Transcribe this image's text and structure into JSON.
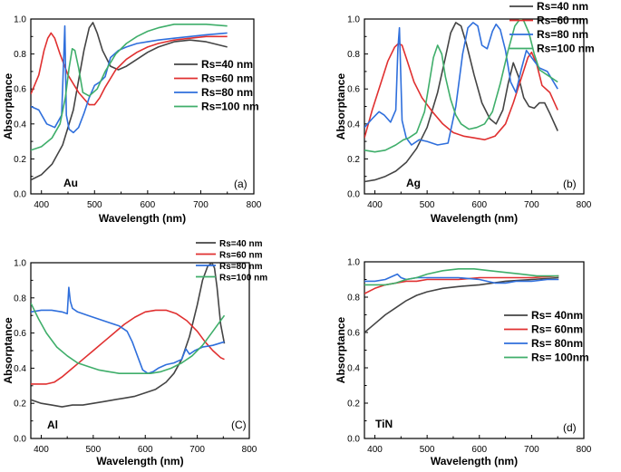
{
  "chart_data": [
    {
      "type": "line",
      "panel_label": "Au",
      "panel_tag": "(a)",
      "xlabel": "Wavelength (nm)",
      "ylabel": "Absorptance",
      "xlim": [
        380,
        800
      ],
      "ylim": [
        0,
        1.0
      ],
      "xticks": [
        400,
        500,
        600,
        700,
        800
      ],
      "yticks": [
        0.0,
        0.2,
        0.4,
        0.6,
        0.8,
        1.0
      ],
      "legend_position": "center-right",
      "legend_style": "bold",
      "series": [
        {
          "name": "Rs=40 nm",
          "color": "#444444",
          "x": [
            380,
            400,
            420,
            440,
            460,
            470,
            480,
            490,
            497,
            505,
            515,
            530,
            545,
            560,
            580,
            600,
            620,
            650,
            680,
            710,
            750
          ],
          "y": [
            0.08,
            0.11,
            0.17,
            0.28,
            0.48,
            0.65,
            0.82,
            0.95,
            0.98,
            0.92,
            0.82,
            0.73,
            0.71,
            0.73,
            0.77,
            0.81,
            0.84,
            0.87,
            0.88,
            0.87,
            0.84
          ]
        },
        {
          "name": "Rs=60 nm",
          "color": "#e03030",
          "x": [
            380,
            395,
            405,
            412,
            418,
            425,
            435,
            450,
            470,
            490,
            500,
            510,
            520,
            540,
            560,
            580,
            600,
            620,
            650,
            680,
            710,
            750
          ],
          "y": [
            0.57,
            0.68,
            0.82,
            0.89,
            0.92,
            0.89,
            0.8,
            0.68,
            0.58,
            0.51,
            0.51,
            0.55,
            0.61,
            0.71,
            0.77,
            0.81,
            0.84,
            0.86,
            0.88,
            0.89,
            0.9,
            0.9
          ]
        },
        {
          "name": "Rs=80 nm",
          "color": "#2f6fdc",
          "x": [
            380,
            395,
            410,
            425,
            438,
            442,
            444,
            447,
            452,
            460,
            470,
            480,
            490,
            500,
            510,
            520,
            530,
            545,
            560,
            580,
            600,
            620,
            650,
            680,
            710,
            750
          ],
          "y": [
            0.5,
            0.48,
            0.4,
            0.38,
            0.45,
            0.78,
            0.96,
            0.45,
            0.37,
            0.35,
            0.38,
            0.46,
            0.55,
            0.62,
            0.64,
            0.67,
            0.78,
            0.82,
            0.84,
            0.86,
            0.87,
            0.88,
            0.89,
            0.9,
            0.91,
            0.92
          ]
        },
        {
          "name": "Rs=100 nm",
          "color": "#3fae6a",
          "x": [
            380,
            400,
            420,
            435,
            445,
            452,
            458,
            463,
            470,
            478,
            490,
            505,
            520,
            540,
            560,
            580,
            600,
            620,
            650,
            680,
            710,
            750
          ],
          "y": [
            0.25,
            0.27,
            0.32,
            0.4,
            0.55,
            0.72,
            0.83,
            0.82,
            0.72,
            0.58,
            0.56,
            0.6,
            0.7,
            0.8,
            0.86,
            0.9,
            0.93,
            0.95,
            0.97,
            0.97,
            0.97,
            0.96
          ]
        }
      ]
    },
    {
      "type": "line",
      "panel_label": "Ag",
      "panel_tag": "(b)",
      "xlabel": "Wavelength (nm)",
      "ylabel": "Absorptance",
      "xlim": [
        380,
        800
      ],
      "ylim": [
        0,
        1.0
      ],
      "xticks": [
        400,
        500,
        600,
        700,
        800
      ],
      "yticks": [
        0.0,
        0.2,
        0.4,
        0.6,
        0.8,
        1.0
      ],
      "legend_position": "top-right",
      "legend_style": "bold",
      "series": [
        {
          "name": "Rs=40 nm",
          "color": "#444444",
          "x": [
            380,
            400,
            420,
            440,
            460,
            480,
            500,
            520,
            535,
            545,
            555,
            565,
            575,
            590,
            605,
            620,
            632,
            645,
            655,
            665,
            675,
            685,
            695,
            705,
            715,
            725,
            735,
            750
          ],
          "y": [
            0.07,
            0.08,
            0.1,
            0.13,
            0.18,
            0.26,
            0.38,
            0.58,
            0.78,
            0.92,
            0.98,
            0.96,
            0.86,
            0.68,
            0.52,
            0.43,
            0.4,
            0.48,
            0.63,
            0.75,
            0.67,
            0.55,
            0.5,
            0.49,
            0.52,
            0.52,
            0.46,
            0.36
          ]
        },
        {
          "name": "Rs=60 nm",
          "color": "#e03030",
          "x": [
            380,
            395,
            410,
            425,
            438,
            445,
            452,
            462,
            475,
            490,
            510,
            530,
            550,
            570,
            590,
            610,
            630,
            650,
            665,
            680,
            693,
            700,
            710,
            720,
            735,
            750
          ],
          "y": [
            0.32,
            0.48,
            0.62,
            0.76,
            0.84,
            0.86,
            0.85,
            0.76,
            0.64,
            0.55,
            0.47,
            0.4,
            0.35,
            0.33,
            0.32,
            0.31,
            0.33,
            0.4,
            0.52,
            0.66,
            0.78,
            0.81,
            0.74,
            0.62,
            0.58,
            0.48
          ]
        },
        {
          "name": "Rs=80 nm",
          "color": "#2f6fdc",
          "x": [
            380,
            395,
            408,
            418,
            430,
            440,
            444,
            447,
            452,
            460,
            470,
            485,
            500,
            520,
            540,
            555,
            568,
            578,
            588,
            597,
            605,
            615,
            625,
            632,
            640,
            650,
            660,
            670,
            680,
            690,
            700,
            715,
            730,
            750
          ],
          "y": [
            0.38,
            0.43,
            0.47,
            0.45,
            0.41,
            0.48,
            0.83,
            0.95,
            0.42,
            0.32,
            0.28,
            0.31,
            0.3,
            0.28,
            0.29,
            0.5,
            0.8,
            0.95,
            0.98,
            0.96,
            0.85,
            0.83,
            0.93,
            0.97,
            0.94,
            0.82,
            0.64,
            0.58,
            0.71,
            0.82,
            0.78,
            0.72,
            0.7,
            0.6
          ]
        },
        {
          "name": "Rs=100 nm",
          "color": "#3fae6a",
          "x": [
            380,
            400,
            420,
            440,
            455,
            465,
            480,
            495,
            505,
            512,
            520,
            528,
            535,
            545,
            555,
            565,
            580,
            595,
            610,
            625,
            640,
            655,
            668,
            678,
            685,
            695,
            705,
            715,
            730,
            750
          ],
          "y": [
            0.25,
            0.24,
            0.25,
            0.28,
            0.31,
            0.32,
            0.35,
            0.47,
            0.65,
            0.78,
            0.85,
            0.8,
            0.67,
            0.54,
            0.45,
            0.4,
            0.37,
            0.38,
            0.4,
            0.47,
            0.63,
            0.82,
            0.96,
            1.0,
            0.99,
            0.92,
            0.8,
            0.71,
            0.68,
            0.64
          ]
        }
      ]
    },
    {
      "type": "line",
      "panel_label": "Al",
      "panel_tag": "(C)",
      "xlabel": "Wavelength (nm)",
      "ylabel": "Absorptance",
      "xlim": [
        380,
        800
      ],
      "ylim": [
        0,
        1.0
      ],
      "xticks": [
        400,
        500,
        600,
        700,
        800
      ],
      "yticks": [
        0.0,
        0.2,
        0.4,
        0.6,
        0.8,
        1.0
      ],
      "legend_position": "top-right",
      "legend_style": "small",
      "series": [
        {
          "name": "Rs=40 nm",
          "color": "#444444",
          "x": [
            380,
            400,
            420,
            440,
            460,
            480,
            500,
            520,
            540,
            560,
            580,
            600,
            620,
            640,
            655,
            670,
            685,
            700,
            710,
            720,
            728,
            733,
            738,
            745,
            752
          ],
          "y": [
            0.22,
            0.2,
            0.19,
            0.18,
            0.19,
            0.19,
            0.2,
            0.21,
            0.22,
            0.23,
            0.24,
            0.26,
            0.28,
            0.32,
            0.37,
            0.45,
            0.58,
            0.76,
            0.9,
            0.98,
            1.0,
            0.97,
            0.86,
            0.65,
            0.54
          ]
        },
        {
          "name": "Rs=60 nm",
          "color": "#e03030",
          "x": [
            380,
            395,
            410,
            425,
            440,
            460,
            480,
            500,
            520,
            540,
            560,
            580,
            600,
            620,
            640,
            660,
            680,
            700,
            715,
            730,
            745,
            752
          ],
          "y": [
            0.31,
            0.31,
            0.31,
            0.32,
            0.35,
            0.4,
            0.45,
            0.5,
            0.55,
            0.6,
            0.65,
            0.69,
            0.72,
            0.73,
            0.73,
            0.71,
            0.67,
            0.61,
            0.55,
            0.5,
            0.46,
            0.45
          ]
        },
        {
          "name": "Rs=80 nm",
          "color": "#2f6fdc",
          "x": [
            380,
            400,
            420,
            440,
            450,
            453,
            456,
            460,
            470,
            490,
            510,
            530,
            550,
            565,
            575,
            585,
            595,
            605,
            615,
            625,
            640,
            655,
            670,
            678,
            685,
            695,
            710,
            730,
            752
          ],
          "y": [
            0.72,
            0.73,
            0.73,
            0.72,
            0.71,
            0.86,
            0.78,
            0.74,
            0.72,
            0.7,
            0.68,
            0.66,
            0.64,
            0.61,
            0.55,
            0.47,
            0.39,
            0.37,
            0.38,
            0.4,
            0.42,
            0.43,
            0.45,
            0.51,
            0.48,
            0.5,
            0.52,
            0.53,
            0.55
          ]
        },
        {
          "name": "Rs=100 nm",
          "color": "#3fae6a",
          "x": [
            380,
            395,
            410,
            430,
            450,
            470,
            490,
            510,
            530,
            550,
            570,
            590,
            610,
            630,
            650,
            670,
            690,
            710,
            730,
            752
          ],
          "y": [
            0.77,
            0.68,
            0.6,
            0.52,
            0.47,
            0.43,
            0.41,
            0.39,
            0.38,
            0.37,
            0.37,
            0.37,
            0.37,
            0.38,
            0.4,
            0.43,
            0.47,
            0.53,
            0.61,
            0.7
          ]
        }
      ]
    },
    {
      "type": "line",
      "panel_label": "TiN",
      "panel_tag": "(d)",
      "xlabel": "Wavelength (nm)",
      "ylabel": "Absorptance",
      "xlim": [
        380,
        800
      ],
      "ylim": [
        0,
        1.0
      ],
      "xticks": [
        400,
        500,
        600,
        700,
        800
      ],
      "yticks": [
        0.0,
        0.2,
        0.4,
        0.6,
        0.8,
        1.0
      ],
      "legend_position": "center-right",
      "legend_style": "bold",
      "series": [
        {
          "name": "Rs= 40nm",
          "color": "#444444",
          "x": [
            380,
            400,
            420,
            440,
            460,
            480,
            500,
            530,
            560,
            600,
            650,
            700,
            752
          ],
          "y": [
            0.6,
            0.65,
            0.7,
            0.74,
            0.78,
            0.81,
            0.83,
            0.85,
            0.86,
            0.87,
            0.89,
            0.9,
            0.91
          ]
        },
        {
          "name": "Rs= 60nm",
          "color": "#e03030",
          "x": [
            380,
            400,
            420,
            440,
            460,
            480,
            500,
            530,
            560,
            600,
            650,
            700,
            752
          ],
          "y": [
            0.82,
            0.85,
            0.87,
            0.88,
            0.89,
            0.89,
            0.9,
            0.9,
            0.9,
            0.91,
            0.91,
            0.91,
            0.92
          ]
        },
        {
          "name": "Rs= 80nm",
          "color": "#2f6fdc",
          "x": [
            380,
            400,
            420,
            435,
            443,
            450,
            460,
            480,
            500,
            530,
            560,
            600,
            630,
            650,
            670,
            700,
            730,
            752
          ],
          "y": [
            0.89,
            0.89,
            0.9,
            0.92,
            0.93,
            0.91,
            0.9,
            0.91,
            0.91,
            0.91,
            0.91,
            0.9,
            0.88,
            0.88,
            0.89,
            0.89,
            0.9,
            0.9
          ]
        },
        {
          "name": "Rs= 100nm",
          "color": "#3fae6a",
          "x": [
            380,
            400,
            420,
            440,
            460,
            480,
            500,
            530,
            560,
            590,
            620,
            650,
            680,
            710,
            752
          ],
          "y": [
            0.87,
            0.87,
            0.87,
            0.88,
            0.9,
            0.91,
            0.93,
            0.95,
            0.96,
            0.96,
            0.95,
            0.94,
            0.93,
            0.92,
            0.92
          ]
        }
      ]
    }
  ]
}
